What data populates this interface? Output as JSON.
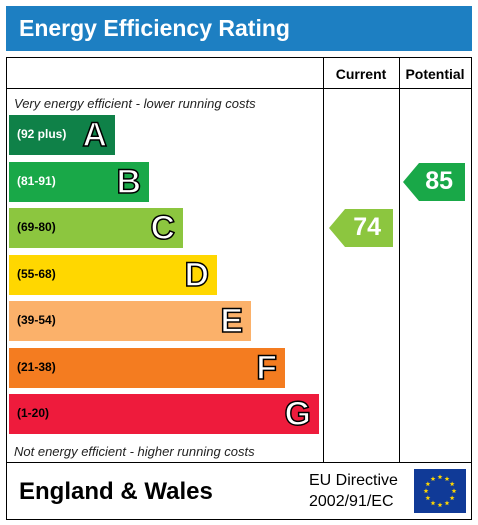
{
  "title": "Energy Efficiency Rating",
  "columns": {
    "current": "Current",
    "potential": "Potential"
  },
  "notes": {
    "top": "Very energy efficient - lower running costs",
    "bottom": "Not energy efficient - higher running costs"
  },
  "bands": [
    {
      "range": "(92 plus)",
      "letter": "A",
      "color": "#0f8148",
      "text_color": "#ffffff"
    },
    {
      "range": "(81-91)",
      "letter": "B",
      "color": "#19a848",
      "text_color": "#ffffff"
    },
    {
      "range": "(69-80)",
      "letter": "C",
      "color": "#8cc63f",
      "text_color": "#000000"
    },
    {
      "range": "(55-68)",
      "letter": "D",
      "color": "#ffd700",
      "text_color": "#000000"
    },
    {
      "range": "(39-54)",
      "letter": "E",
      "color": "#fbb16a",
      "text_color": "#000000"
    },
    {
      "range": "(21-38)",
      "letter": "F",
      "color": "#f47c20",
      "text_color": "#000000"
    },
    {
      "range": "(1-20)",
      "letter": "G",
      "color": "#ee1b3c",
      "text_color": "#000000"
    }
  ],
  "current": {
    "value": "74",
    "band": "C",
    "color": "#8cc63f"
  },
  "potential": {
    "value": "85",
    "band": "B",
    "color": "#19a848"
  },
  "footer": {
    "region": "England & Wales",
    "directive_line1": "EU Directive",
    "directive_line2": "2002/91/EC",
    "flag_icon": "eu-flag-icon"
  }
}
